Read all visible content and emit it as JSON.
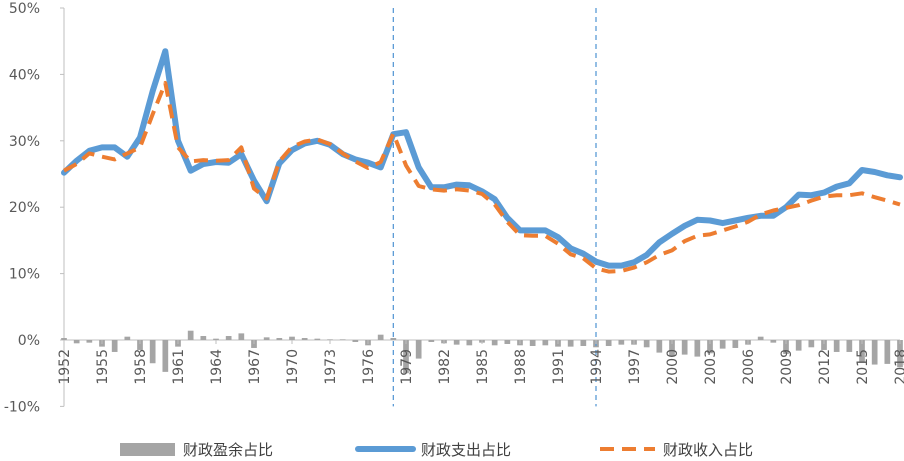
{
  "chart_data": {
    "type": "line",
    "title": "",
    "xlabel": "",
    "ylabel": "",
    "ylim": [
      -10,
      50
    ],
    "y_ticks": [
      "50%",
      "40%",
      "30%",
      "20%",
      "10%",
      "0%",
      "-10%"
    ],
    "y_tick_values": [
      50,
      40,
      30,
      20,
      10,
      0,
      -10
    ],
    "x_tick_labels": [
      "1952",
      "1955",
      "1958",
      "1961",
      "1964",
      "1967",
      "1970",
      "1973",
      "1976",
      "1979",
      "1982",
      "1985",
      "1988",
      "1991",
      "1994",
      "1997",
      "2000",
      "2003",
      "2006",
      "2009",
      "2012",
      "2015",
      "2018"
    ],
    "years": [
      1952,
      1953,
      1954,
      1955,
      1956,
      1957,
      1958,
      1959,
      1960,
      1961,
      1962,
      1963,
      1964,
      1965,
      1966,
      1967,
      1968,
      1969,
      1970,
      1971,
      1972,
      1973,
      1974,
      1975,
      1976,
      1977,
      1978,
      1979,
      1980,
      1981,
      1982,
      1983,
      1984,
      1985,
      1986,
      1987,
      1988,
      1989,
      1990,
      1991,
      1992,
      1993,
      1994,
      1995,
      1996,
      1997,
      1998,
      1999,
      2000,
      2001,
      2002,
      2003,
      2004,
      2005,
      2006,
      2007,
      2008,
      2009,
      2010,
      2011,
      2012,
      2013,
      2014,
      2015,
      2016,
      2017,
      2018
    ],
    "vlines": [
      1978,
      1994
    ],
    "series": [
      {
        "name": "财政盈余占比",
        "type": "bar",
        "color": "#a5a5a5",
        "values": [
          0.3,
          -0.5,
          -0.4,
          -1.0,
          -1.8,
          0.5,
          -1.5,
          -3.5,
          -4.8,
          -1.0,
          1.4,
          0.6,
          0.2,
          0.6,
          1.0,
          -1.2,
          0.4,
          0.3,
          0.5,
          0.3,
          0.2,
          0.1,
          0.1,
          -0.3,
          -0.8,
          0.8,
          0.3,
          -5.0,
          -2.8,
          -0.3,
          -0.5,
          -0.7,
          -0.8,
          -0.4,
          -0.8,
          -0.6,
          -0.8,
          -0.9,
          -0.8,
          -1.0,
          -1.0,
          -0.9,
          -1.1,
          -0.9,
          -0.7,
          -0.7,
          -1.1,
          -1.9,
          -2.5,
          -2.2,
          -2.5,
          -2.0,
          -1.3,
          -1.2,
          -0.7,
          0.5,
          -0.4,
          -2.1,
          -1.6,
          -1.1,
          -1.5,
          -1.8,
          -1.8,
          -3.4,
          -3.7,
          -3.6,
          -4.1
        ]
      },
      {
        "name": "财政支出占比",
        "type": "line",
        "color": "#5b9bd5",
        "values": [
          25.2,
          27.0,
          28.5,
          29.0,
          29.0,
          27.6,
          30.5,
          37.5,
          43.5,
          30.0,
          25.5,
          26.5,
          26.8,
          26.7,
          28.0,
          24.0,
          20.9,
          26.6,
          28.6,
          29.6,
          30.0,
          29.4,
          28.0,
          27.2,
          26.7,
          26.0,
          31.0,
          31.3,
          26.0,
          23.0,
          23.0,
          23.4,
          23.3,
          22.4,
          21.2,
          18.4,
          16.5,
          16.5,
          16.5,
          15.5,
          13.8,
          13.0,
          11.8,
          11.2,
          11.2,
          11.7,
          12.8,
          14.7,
          16.0,
          17.2,
          18.1,
          18.0,
          17.6,
          18.0,
          18.4,
          18.7,
          18.7,
          20.0,
          21.9,
          21.8,
          22.2,
          23.1,
          23.6,
          25.6,
          25.3,
          24.8,
          24.5
        ]
      },
      {
        "name": "财政收入占比",
        "type": "line",
        "color": "#ed7d31",
        "dashed": true,
        "values": [
          25.5,
          26.5,
          28.1,
          27.6,
          27.2,
          28.1,
          29.0,
          34.0,
          38.7,
          29.0,
          26.9,
          27.1,
          27.0,
          27.1,
          29.0,
          22.8,
          21.3,
          26.9,
          29.1,
          29.9,
          30.2,
          29.5,
          28.1,
          26.9,
          25.9,
          26.8,
          31.1,
          26.3,
          23.2,
          22.7,
          22.5,
          22.7,
          22.5,
          22.0,
          20.4,
          17.8,
          15.8,
          15.7,
          15.7,
          14.5,
          12.9,
          12.3,
          10.8,
          10.3,
          10.4,
          10.9,
          11.7,
          12.8,
          13.5,
          14.9,
          15.7,
          15.9,
          16.5,
          17.1,
          17.8,
          18.9,
          19.5,
          19.9,
          20.3,
          21.0,
          21.6,
          21.8,
          21.8,
          22.1,
          21.5,
          21.0,
          20.4
        ]
      }
    ],
    "legend": {
      "position": "bottom"
    }
  }
}
